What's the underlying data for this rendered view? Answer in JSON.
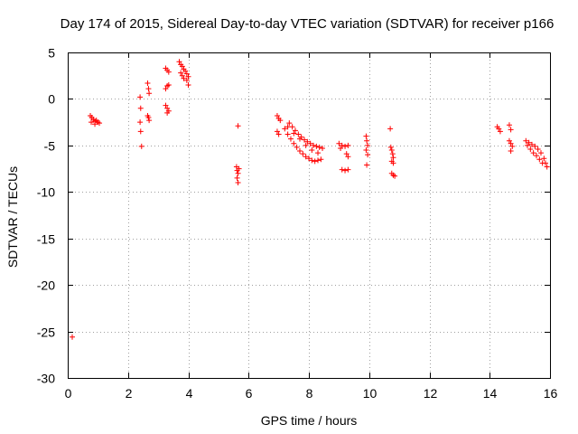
{
  "chart_data": {
    "type": "scatter",
    "title": "Day 174 of 2015, Sidereal Day-to-day VTEC variation (SDTVAR) for receiver p166",
    "xlabel": "GPS time / hours",
    "ylabel": "SDTVAR / TECUs",
    "xlim": [
      0,
      16
    ],
    "ylim": [
      -30,
      5
    ],
    "xticks": [
      0,
      2,
      4,
      6,
      8,
      10,
      12,
      14,
      16
    ],
    "yticks": [
      5,
      0,
      -5,
      -10,
      -15,
      -20,
      -25,
      -30
    ],
    "grid": true,
    "marker": "+",
    "color": "#ff0000",
    "series": [
      {
        "name": "p166",
        "points": [
          [
            0.15,
            -25.6
          ],
          [
            0.75,
            -1.8
          ],
          [
            0.8,
            -2.0
          ],
          [
            0.85,
            -2.2
          ],
          [
            0.9,
            -2.4
          ],
          [
            0.95,
            -2.3
          ],
          [
            1.0,
            -2.5
          ],
          [
            1.05,
            -2.6
          ],
          [
            0.78,
            -2.5
          ],
          [
            0.9,
            -2.7
          ],
          [
            2.4,
            0.2
          ],
          [
            2.42,
            -1.0
          ],
          [
            2.4,
            -2.5
          ],
          [
            2.42,
            -3.5
          ],
          [
            2.45,
            -5.1
          ],
          [
            2.65,
            1.7
          ],
          [
            2.68,
            1.1
          ],
          [
            2.7,
            0.6
          ],
          [
            2.65,
            -1.8
          ],
          [
            2.7,
            -2.3
          ],
          [
            2.68,
            -2.0
          ],
          [
            3.25,
            3.3
          ],
          [
            3.3,
            3.1
          ],
          [
            3.35,
            2.9
          ],
          [
            3.25,
            1.1
          ],
          [
            3.3,
            1.4
          ],
          [
            3.35,
            1.5
          ],
          [
            3.25,
            -0.7
          ],
          [
            3.3,
            -1.0
          ],
          [
            3.35,
            -1.3
          ],
          [
            3.3,
            -1.5
          ],
          [
            3.7,
            4.0
          ],
          [
            3.75,
            3.7
          ],
          [
            3.8,
            3.5
          ],
          [
            3.85,
            3.2
          ],
          [
            3.9,
            3.0
          ],
          [
            3.95,
            2.7
          ],
          [
            4.0,
            2.4
          ],
          [
            3.75,
            2.8
          ],
          [
            3.8,
            2.5
          ],
          [
            3.85,
            2.2
          ],
          [
            3.95,
            2.0
          ],
          [
            4.0,
            1.5
          ],
          [
            5.65,
            -2.9
          ],
          [
            5.6,
            -7.3
          ],
          [
            5.62,
            -7.7
          ],
          [
            5.65,
            -8.0
          ],
          [
            5.62,
            -8.5
          ],
          [
            5.65,
            -9.0
          ],
          [
            5.68,
            -7.5
          ],
          [
            6.95,
            -1.8
          ],
          [
            7.0,
            -2.1
          ],
          [
            7.05,
            -2.3
          ],
          [
            6.95,
            -3.5
          ],
          [
            7.0,
            -3.8
          ],
          [
            7.2,
            -3.2
          ],
          [
            7.3,
            -3.8
          ],
          [
            7.4,
            -4.3
          ],
          [
            7.5,
            -4.8
          ],
          [
            7.6,
            -5.2
          ],
          [
            7.7,
            -5.6
          ],
          [
            7.8,
            -5.9
          ],
          [
            7.9,
            -6.2
          ],
          [
            8.0,
            -6.4
          ],
          [
            8.1,
            -6.6
          ],
          [
            8.2,
            -6.7
          ],
          [
            8.3,
            -6.6
          ],
          [
            8.4,
            -6.5
          ],
          [
            7.35,
            -2.6
          ],
          [
            7.45,
            -3.0
          ],
          [
            7.55,
            -3.4
          ],
          [
            7.65,
            -3.8
          ],
          [
            7.75,
            -4.1
          ],
          [
            7.85,
            -4.4
          ],
          [
            7.95,
            -4.6
          ],
          [
            8.05,
            -4.8
          ],
          [
            8.15,
            -5.0
          ],
          [
            8.25,
            -5.1
          ],
          [
            8.35,
            -5.2
          ],
          [
            8.45,
            -5.3
          ],
          [
            7.3,
            -3.0
          ],
          [
            7.5,
            -3.7
          ],
          [
            7.7,
            -4.3
          ],
          [
            7.9,
            -5.0
          ],
          [
            8.1,
            -5.5
          ],
          [
            8.3,
            -5.8
          ],
          [
            9.0,
            -4.8
          ],
          [
            9.1,
            -5.0
          ],
          [
            9.2,
            -5.1
          ],
          [
            9.3,
            -5.0
          ],
          [
            9.05,
            -5.3
          ],
          [
            9.25,
            -5.9
          ],
          [
            9.3,
            -6.2
          ],
          [
            9.1,
            -7.6
          ],
          [
            9.2,
            -7.7
          ],
          [
            9.3,
            -7.6
          ],
          [
            9.9,
            -4.0
          ],
          [
            9.92,
            -4.5
          ],
          [
            9.95,
            -5.0
          ],
          [
            9.9,
            -5.5
          ],
          [
            9.95,
            -6.0
          ],
          [
            9.92,
            -7.1
          ],
          [
            10.7,
            -3.2
          ],
          [
            10.72,
            -5.2
          ],
          [
            10.75,
            -5.5
          ],
          [
            10.78,
            -5.9
          ],
          [
            10.8,
            -6.3
          ],
          [
            10.75,
            -6.7
          ],
          [
            10.8,
            -6.9
          ],
          [
            10.75,
            -8.0
          ],
          [
            10.8,
            -8.2
          ],
          [
            10.85,
            -8.3
          ],
          [
            14.25,
            -3.0
          ],
          [
            14.3,
            -3.2
          ],
          [
            14.35,
            -3.5
          ],
          [
            14.65,
            -2.8
          ],
          [
            14.7,
            -3.3
          ],
          [
            14.65,
            -4.5
          ],
          [
            14.7,
            -4.8
          ],
          [
            14.75,
            -5.1
          ],
          [
            14.7,
            -5.6
          ],
          [
            15.2,
            -4.5
          ],
          [
            15.3,
            -4.7
          ],
          [
            15.4,
            -4.9
          ],
          [
            15.5,
            -5.1
          ],
          [
            15.6,
            -5.4
          ],
          [
            15.7,
            -5.8
          ],
          [
            15.8,
            -6.4
          ],
          [
            15.85,
            -6.9
          ],
          [
            15.9,
            -7.3
          ],
          [
            15.25,
            -5.0
          ],
          [
            15.35,
            -5.4
          ],
          [
            15.45,
            -5.8
          ],
          [
            15.55,
            -6.1
          ],
          [
            15.65,
            -6.5
          ],
          [
            15.75,
            -6.9
          ]
        ]
      }
    ]
  }
}
